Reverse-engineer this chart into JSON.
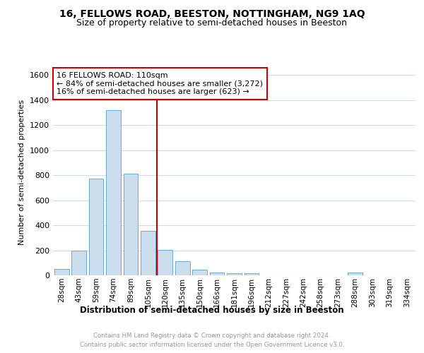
{
  "title": "16, FELLOWS ROAD, BEESTON, NOTTINGHAM, NG9 1AQ",
  "subtitle": "Size of property relative to semi-detached houses in Beeston",
  "xlabel": "Distribution of semi-detached houses by size in Beeston",
  "ylabel": "Number of semi-detached properties",
  "bar_labels": [
    "28sqm",
    "43sqm",
    "59sqm",
    "74sqm",
    "89sqm",
    "105sqm",
    "120sqm",
    "135sqm",
    "150sqm",
    "166sqm",
    "181sqm",
    "196sqm",
    "212sqm",
    "227sqm",
    "242sqm",
    "258sqm",
    "273sqm",
    "288sqm",
    "303sqm",
    "319sqm",
    "334sqm"
  ],
  "bar_heights": [
    50,
    200,
    775,
    1320,
    810,
    355,
    205,
    115,
    45,
    25,
    15,
    15,
    0,
    0,
    0,
    0,
    0,
    20,
    0,
    0,
    0
  ],
  "bar_color": "#ccdded",
  "bar_edgecolor": "#6aaad4",
  "vline_color": "#cc0000",
  "annotation_text": "16 FELLOWS ROAD: 110sqm\n← 84% of semi-detached houses are smaller (3,272)\n16% of semi-detached houses are larger (623) →",
  "annotation_box_color": "#ffffff",
  "annotation_box_edgecolor": "#cc0000",
  "ylim": [
    0,
    1650
  ],
  "yticks": [
    0,
    200,
    400,
    600,
    800,
    1000,
    1200,
    1400,
    1600
  ],
  "footer_line1": "Contains HM Land Registry data © Crown copyright and database right 2024.",
  "footer_line2": "Contains public sector information licensed under the Open Government Licence v3.0.",
  "plot_background": "#ffffff",
  "grid_color": "#d0dce8",
  "title_fontsize": 10,
  "subtitle_fontsize": 9
}
